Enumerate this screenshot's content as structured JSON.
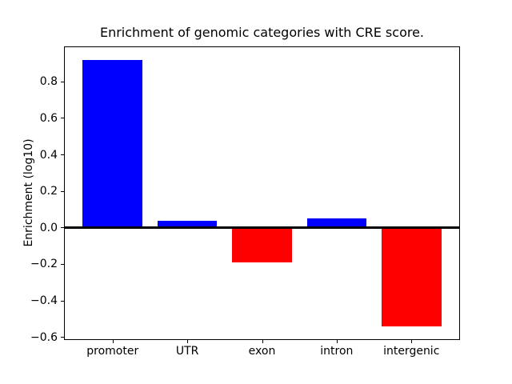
{
  "chart_data": {
    "type": "bar",
    "title": "Enrichment of genomic categories with CRE score.",
    "ylabel": "Enrichment (log10)",
    "xlabel": "",
    "categories": [
      "promoter",
      "UTR",
      "exon",
      "intron",
      "intergenic"
    ],
    "values": [
      0.92,
      0.04,
      -0.19,
      0.05,
      -0.54
    ],
    "positive_color": "#0000ff",
    "negative_color": "#ff0000",
    "axis_color": "#000000",
    "background_color": "#ffffff",
    "bar_width": 0.8,
    "xlim": [
      -0.64,
      4.64
    ],
    "ylim": [
      -0.61,
      0.99
    ],
    "ytick_values": [
      -0.6,
      -0.4,
      -0.2,
      0.0,
      0.2,
      0.4,
      0.6,
      0.8
    ],
    "ytick_labels": [
      "−0.6",
      "−0.4",
      "−0.2",
      "0.0",
      "0.2",
      "0.4",
      "0.6",
      "0.8"
    ],
    "zero_line": true,
    "grid": false,
    "legend": false
  }
}
